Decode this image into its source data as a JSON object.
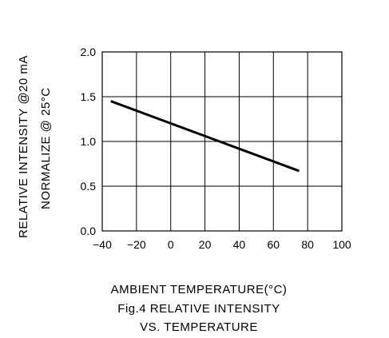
{
  "chart_data": {
    "type": "line",
    "x": [
      -35,
      75
    ],
    "series": [
      {
        "values": [
          1.45,
          0.67
        ]
      }
    ],
    "xlim": [
      -40,
      100
    ],
    "ylim": [
      0.0,
      2.0
    ],
    "x_ticks": [
      "-40",
      "-20",
      "0",
      "20",
      "40",
      "60",
      "80",
      "100"
    ],
    "y_ticks": [
      "0.0",
      "0.5",
      "1.0",
      "1.5",
      "2.0"
    ],
    "grid": true,
    "ylabel_line1": "RELATIVE INTENSITY @20 mA",
    "ylabel_line2": "NORMALIZE @ 25°C",
    "xlabel": "AMBIENT TEMPERATURE(°C)",
    "caption_line1": "Fig.4 RELATIVE INTENSITY",
    "caption_line2": "VS. TEMPERATURE"
  },
  "colors": {
    "line": "#000000",
    "grid": "#000000",
    "background": "#ffffff"
  }
}
